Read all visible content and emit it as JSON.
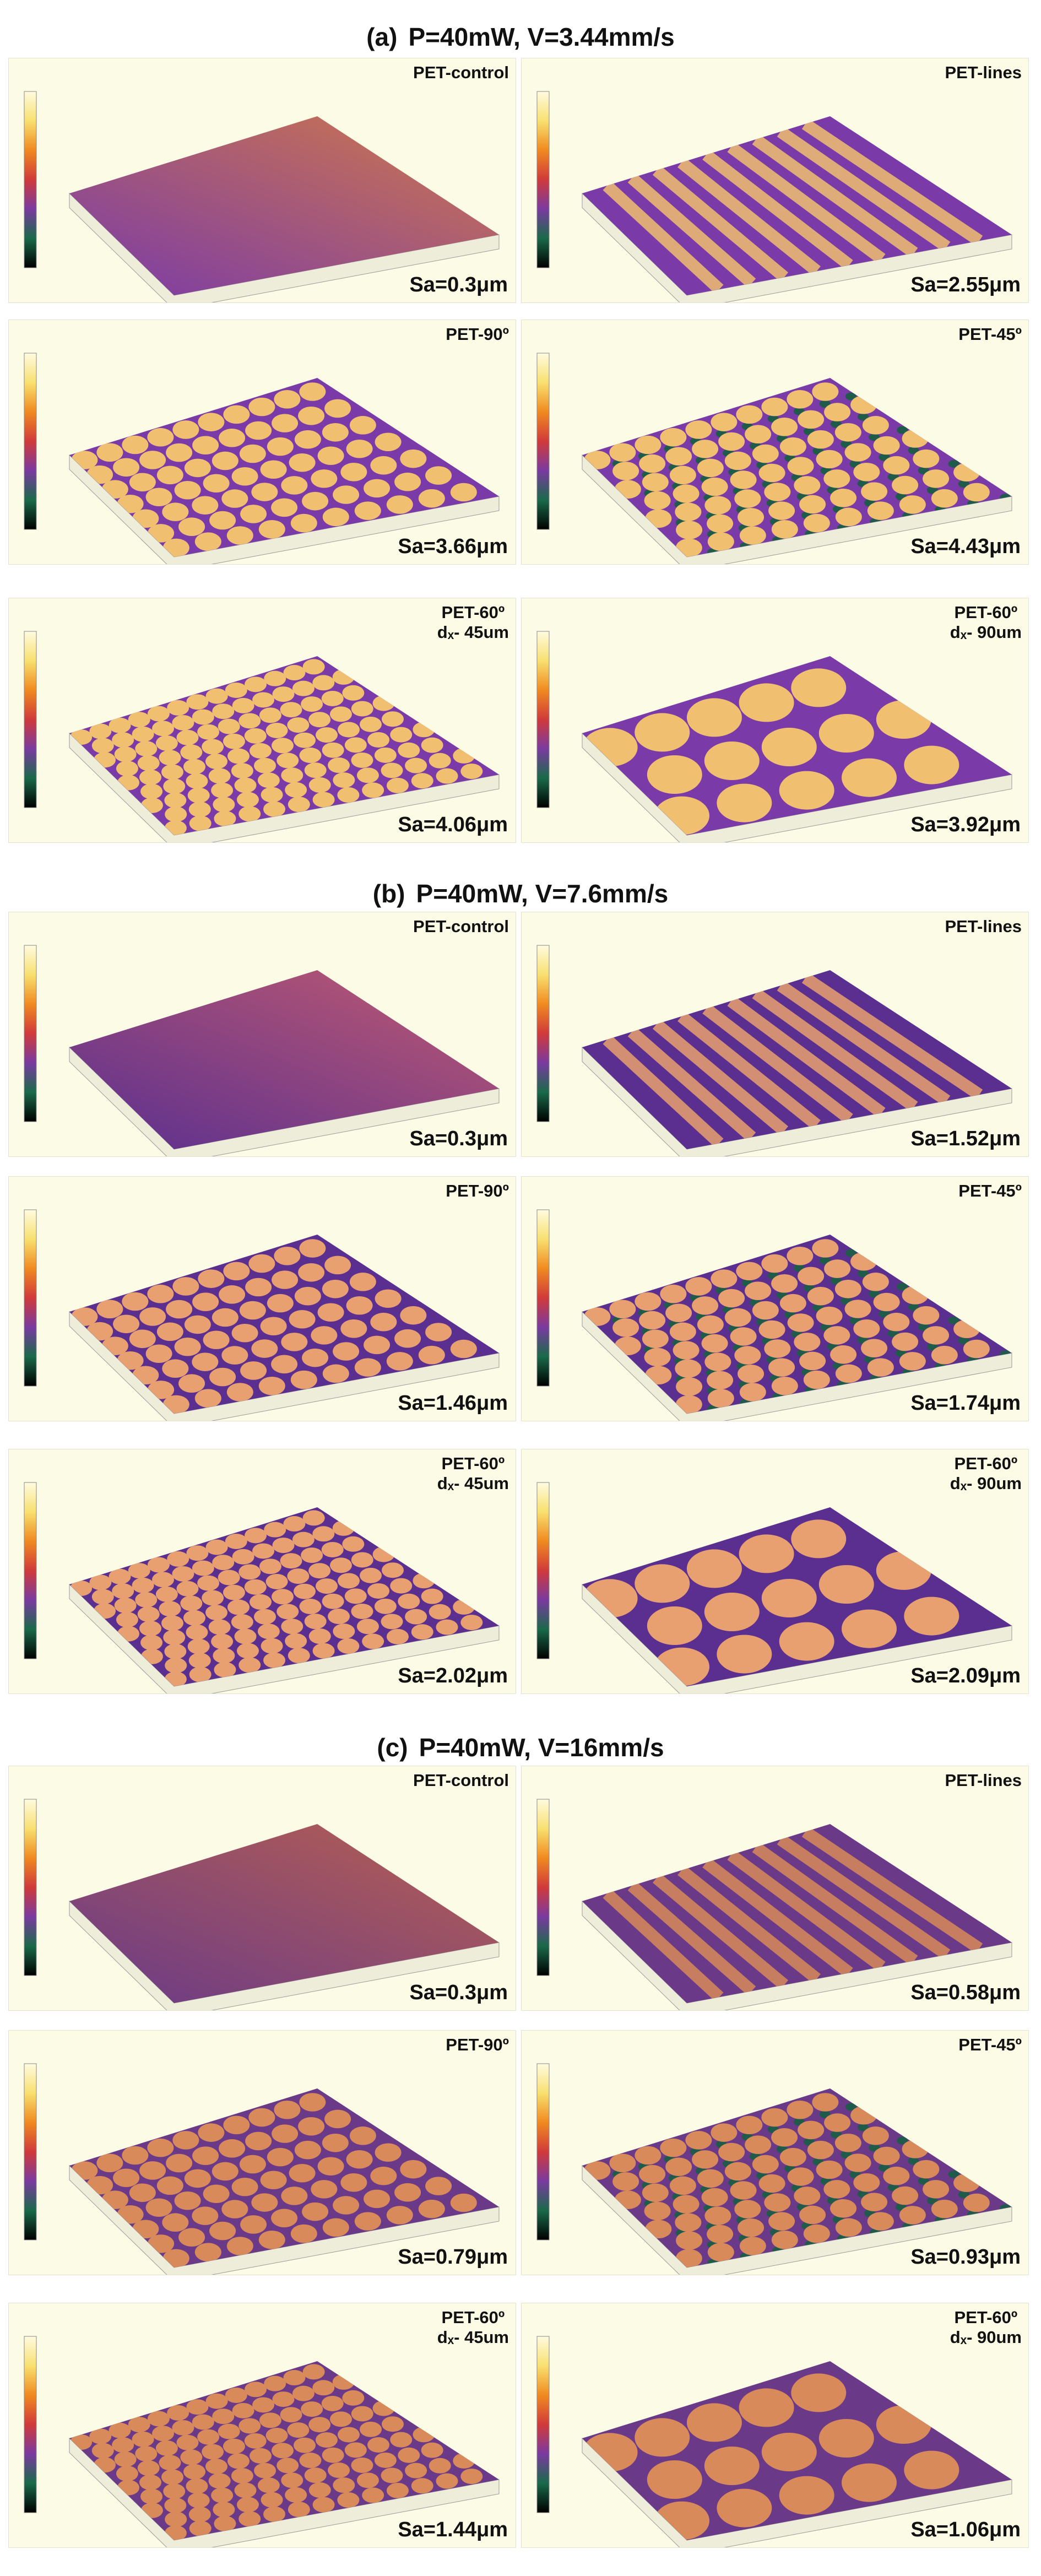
{
  "sections": [
    {
      "label": "(a)",
      "title": "P=40mW, V=3.44mm/s",
      "panels": [
        {
          "name": "PET-control",
          "sa": "Sa=0.3μm"
        },
        {
          "name": "PET-lines",
          "sa": "Sa=2.55μm"
        },
        {
          "name": "PET-90º",
          "sa": "Sa=3.66μm"
        },
        {
          "name": "PET-45º",
          "sa": "Sa=4.43μm"
        },
        {
          "name": "PET-60º",
          "sub": "dₓ- 45um",
          "sa": "Sa=4.06μm"
        },
        {
          "name": "PET-60º",
          "sub": "dₓ- 90um",
          "sa": "Sa=3.92μm"
        }
      ]
    },
    {
      "label": "(b)",
      "title": "P=40mW, V=7.6mm/s",
      "panels": [
        {
          "name": "PET-control",
          "sa": "Sa=0.3μm"
        },
        {
          "name": "PET-lines",
          "sa": "Sa=1.52μm"
        },
        {
          "name": "PET-90º",
          "sa": "Sa=1.46μm"
        },
        {
          "name": "PET-45º",
          "sa": "Sa=1.74μm"
        },
        {
          "name": "PET-60º",
          "sub": "dₓ- 45um",
          "sa": "Sa=2.02μm"
        },
        {
          "name": "PET-60º",
          "sub": "dₓ- 90um",
          "sa": "Sa=2.09μm"
        }
      ]
    },
    {
      "label": "(c)",
      "title": "P=40mW, V=16mm/s",
      "panels": [
        {
          "name": "PET-control",
          "sa": "Sa=0.3μm"
        },
        {
          "name": "PET-lines",
          "sa": "Sa=0.58μm"
        },
        {
          "name": "PET-90º",
          "sa": "Sa=0.79μm"
        },
        {
          "name": "PET-45º",
          "sa": "Sa=0.93μm"
        },
        {
          "name": "PET-60º",
          "sub": "dₓ- 45um",
          "sa": "Sa=1.44μm"
        },
        {
          "name": "PET-60º",
          "sub": "dₓ- 90um",
          "sa": "Sa=1.06μm"
        }
      ]
    }
  ]
}
